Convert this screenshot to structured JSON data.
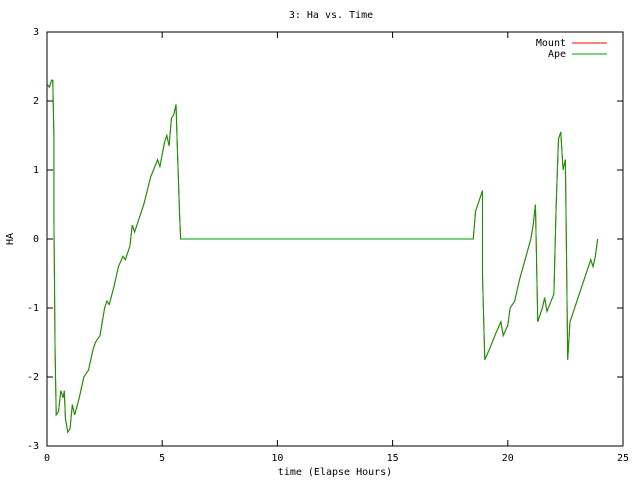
{
  "chart_data": {
    "type": "line",
    "title": "3: Ha vs. Time",
    "xlabel": "time (Elapse Hours)",
    "ylabel": "HA",
    "xlim": [
      0,
      25
    ],
    "ylim": [
      -3,
      3
    ],
    "xticks": [
      0,
      5,
      10,
      15,
      20,
      25
    ],
    "yticks": [
      -3,
      -2,
      -1,
      0,
      1,
      2,
      3
    ],
    "legend": "upper right",
    "x": [
      0.0,
      0.1,
      0.2,
      0.25,
      0.3,
      0.3,
      0.35,
      0.4,
      0.5,
      0.6,
      0.7,
      0.75,
      0.8,
      0.9,
      1.0,
      1.1,
      1.2,
      1.4,
      1.6,
      1.8,
      2.0,
      2.1,
      2.3,
      2.5,
      2.6,
      2.7,
      2.9,
      3.1,
      3.3,
      3.4,
      3.6,
      3.7,
      3.8,
      4.0,
      4.2,
      4.5,
      4.8,
      4.9,
      5.1,
      5.2,
      5.3,
      5.4,
      5.5,
      5.6,
      5.65,
      5.75,
      5.8,
      18.5,
      18.6,
      18.8,
      18.9,
      18.9,
      19.0,
      19.2,
      19.5,
      19.7,
      19.8,
      20.0,
      20.1,
      20.3,
      20.5,
      21.0,
      21.1,
      21.2,
      21.3,
      21.5,
      21.6,
      21.7,
      22.0,
      22.1,
      22.2,
      22.3,
      22.4,
      22.5,
      22.6,
      22.7,
      23.0,
      23.3,
      23.6,
      23.7,
      23.8,
      23.9
    ],
    "series": [
      {
        "name": "Mount",
        "color": "#ff0000",
        "values": [
          2.25,
          2.2,
          2.3,
          2.3,
          1.5,
          0.3,
          -1.6,
          -2.55,
          -2.5,
          -2.2,
          -2.3,
          -2.2,
          -2.6,
          -2.8,
          -2.75,
          -2.4,
          -2.55,
          -2.3,
          -2.0,
          -1.9,
          -1.6,
          -1.5,
          -1.4,
          -1.0,
          -0.9,
          -0.95,
          -0.7,
          -0.4,
          -0.25,
          -0.3,
          -0.1,
          0.2,
          0.1,
          0.3,
          0.5,
          0.9,
          1.15,
          1.05,
          1.4,
          1.5,
          1.35,
          1.75,
          1.8,
          1.95,
          1.4,
          0.4,
          0.0,
          0.0,
          0.4,
          0.6,
          0.7,
          -0.5,
          -1.75,
          -1.6,
          -1.35,
          -1.2,
          -1.4,
          -1.25,
          -1.0,
          -0.9,
          -0.6,
          0.0,
          0.2,
          0.5,
          -1.2,
          -1.0,
          -0.85,
          -1.05,
          -0.8,
          0.5,
          1.45,
          1.55,
          1.0,
          1.15,
          -1.75,
          -1.2,
          -0.9,
          -0.6,
          -0.3,
          -0.4,
          -0.25,
          0.0
        ]
      },
      {
        "name": "Ape",
        "color": "#00a000",
        "values": [
          2.25,
          2.2,
          2.3,
          2.3,
          1.5,
          0.3,
          -1.6,
          -2.55,
          -2.5,
          -2.2,
          -2.3,
          -2.2,
          -2.6,
          -2.8,
          -2.75,
          -2.4,
          -2.55,
          -2.3,
          -2.0,
          -1.9,
          -1.6,
          -1.5,
          -1.4,
          -1.0,
          -0.9,
          -0.95,
          -0.7,
          -0.4,
          -0.25,
          -0.3,
          -0.1,
          0.2,
          0.1,
          0.3,
          0.5,
          0.9,
          1.15,
          1.05,
          1.4,
          1.5,
          1.35,
          1.75,
          1.8,
          1.95,
          1.4,
          0.4,
          0.0,
          0.0,
          0.4,
          0.6,
          0.7,
          -0.5,
          -1.75,
          -1.6,
          -1.35,
          -1.2,
          -1.4,
          -1.25,
          -1.0,
          -0.9,
          -0.6,
          0.0,
          0.2,
          0.5,
          -1.2,
          -1.0,
          -0.85,
          -1.05,
          -0.8,
          0.5,
          1.45,
          1.55,
          1.0,
          1.15,
          -1.75,
          -1.2,
          -0.9,
          -0.6,
          -0.3,
          -0.4,
          -0.25,
          0.0
        ]
      }
    ]
  }
}
